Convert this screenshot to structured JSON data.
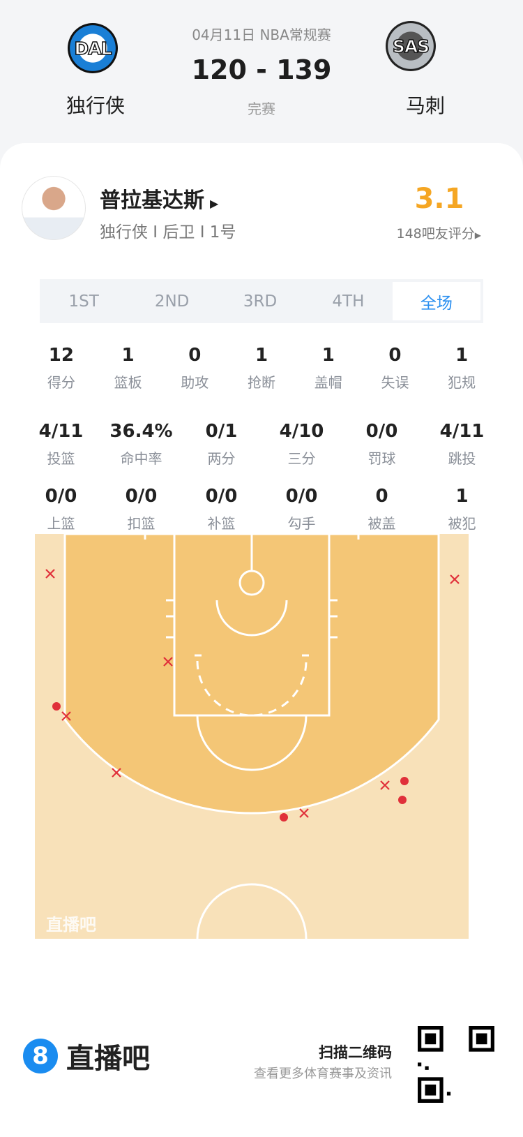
{
  "game": {
    "date_league": "04月11日 NBA常规赛",
    "score": "120 - 139",
    "status": "完赛",
    "home": {
      "abbr": "DAL",
      "name": "独行侠",
      "color": "#1a7fd6"
    },
    "away": {
      "abbr": "SAS",
      "name": "马刺",
      "color": "#b9bec3"
    }
  },
  "player": {
    "name": "普拉基达斯",
    "info": "独行侠 I 后卫 I 1号",
    "rating": "3.1",
    "rating_color": "#f5a623",
    "rating_count": "148吧友评分"
  },
  "tabs": [
    {
      "label": "1ST"
    },
    {
      "label": "2ND"
    },
    {
      "label": "3RD"
    },
    {
      "label": "4TH"
    },
    {
      "label": "全场",
      "active": true
    }
  ],
  "stats_rows": [
    [
      {
        "v": "12",
        "l": "得分"
      },
      {
        "v": "1",
        "l": "篮板"
      },
      {
        "v": "0",
        "l": "助攻"
      },
      {
        "v": "1",
        "l": "抢断"
      },
      {
        "v": "1",
        "l": "盖帽"
      },
      {
        "v": "0",
        "l": "失误"
      },
      {
        "v": "1",
        "l": "犯规"
      }
    ],
    [
      {
        "v": "4/11",
        "l": "投篮"
      },
      {
        "v": "36.4%",
        "l": "命中率"
      },
      {
        "v": "0/1",
        "l": "两分"
      },
      {
        "v": "4/10",
        "l": "三分"
      },
      {
        "v": "0/0",
        "l": "罚球"
      },
      {
        "v": "4/11",
        "l": "跳投"
      }
    ],
    [
      {
        "v": "0/0",
        "l": "上篮"
      },
      {
        "v": "0/0",
        "l": "扣篮"
      },
      {
        "v": "0/0",
        "l": "补篮"
      },
      {
        "v": "0/0",
        "l": "勾手"
      },
      {
        "v": "0",
        "l": "被盖"
      },
      {
        "v": "1",
        "l": "被犯"
      }
    ]
  ],
  "shot_chart": {
    "watermark": "直播吧",
    "made_color": "#e0303a",
    "miss_color": "#e0303a",
    "shots": [
      "miss",
      "miss",
      "miss",
      "miss",
      "miss",
      "miss",
      "miss",
      "made",
      "made",
      "made",
      "made"
    ]
  },
  "footer": {
    "brand": "直播吧",
    "brand_icon": "8",
    "scan": "扫描二维码",
    "sub": "查看更多体育赛事及资讯"
  }
}
